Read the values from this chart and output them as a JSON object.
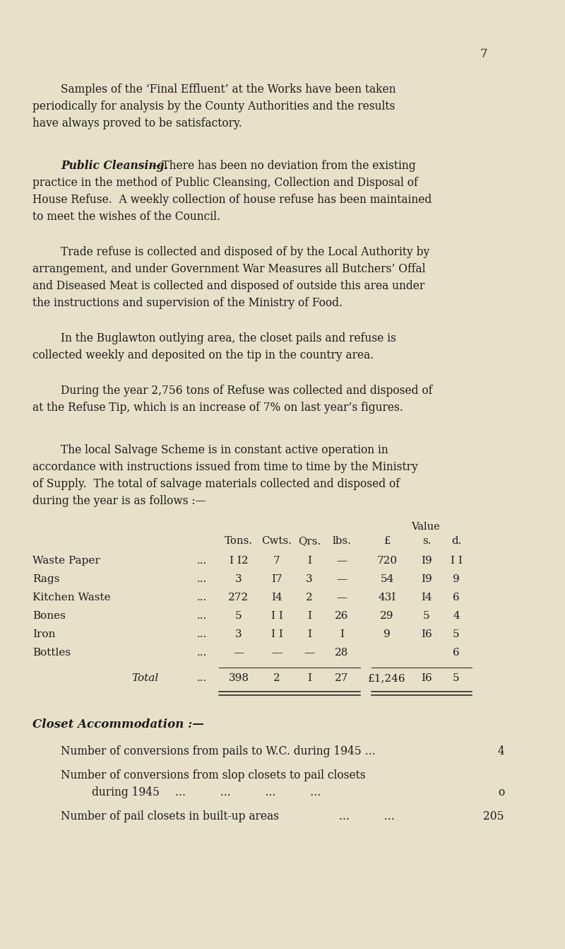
{
  "bg_color": "#e8e0c8",
  "text_color": "#1c1c1c",
  "page_number": "7",
  "para1": "Samples of the ‘Final Effluent’ at the Works have been taken periodically for analysis by the County Authorities and the results have always proved to be satisfactory.",
  "para2_bold": "Public Cleansing.",
  "para2_rest": "—There has been no deviation from the existing practice in the method of Public Cleansing, Collection and Disposal of House Refuse.  A weekly collection of house refuse has been maintained to meet the wishes of the Council.",
  "para3": "Trade refuse is collected and disposed of by the Local Authority by arrangement, and under Government War Measures all Butchers’ Offal and Diseased Meat is collected and disposed of outside this area under the instructions and supervision of the Ministry of Food.",
  "para4": "In the Buglawton outlying area, the closet pails and refuse is collected weekly and deposited on the tip in the country area.",
  "para5": "During the year 2,756 tons of Refuse was collected and disposed of at the Refuse Tip, which is an increase of 7% on last year’s figures.",
  "para6_line1": "The local Salvage Scheme is in constant active operation in",
  "para6_line2": "accordance with instructions issued from time to time by the Ministry",
  "para6_line3": "of Supply.  The total of salvage materials collected and disposed of",
  "para6_line4": "during the year is as follows :—",
  "table_value_label": "Value",
  "table_col_headers": [
    "Tons.",
    "Cwts.",
    "Qrs.",
    "lbs.",
    "£",
    "s.",
    "d."
  ],
  "table_rows": [
    [
      "Waste Paper",
      "...",
      "I I2",
      "7",
      "I",
      "—",
      "720",
      "I9",
      "I I"
    ],
    [
      "Rags",
      "...",
      "3",
      "I7",
      "3",
      "—",
      "54",
      "I9",
      "9"
    ],
    [
      "Kitchen Waste",
      "...",
      "272",
      "I4",
      "2",
      "—",
      "43I",
      "I4",
      "6"
    ],
    [
      "Bones",
      "...",
      "5",
      "I I",
      "I",
      "26",
      "29",
      "5",
      "4"
    ],
    [
      "Iron",
      "...",
      "3",
      "I I",
      "I",
      "I",
      "9",
      "I6",
      "5"
    ],
    [
      "Bottles",
      "...",
      "—",
      "—",
      "—",
      "28",
      "",
      "",
      "6"
    ]
  ],
  "table_total": [
    "Total",
    "...",
    "398",
    "2",
    "I",
    "27",
    "£1,246",
    "I6",
    "5"
  ],
  "closet_title": "Closet Accommodation :—",
  "closet_line1a": "Number of conversions from pails to W.C. during 1945 ...",
  "closet_line1b": "4",
  "closet_line2a": "Number of conversions from slop closets to pail closets",
  "closet_line2b_text": "during 1945",
  "closet_line2b_dots": "...          ...          ...          ...",
  "closet_line2b_val": "o",
  "closet_line3a": "Number of pail closets in built-up areas",
  "closet_line3b_dots": "...          ...",
  "closet_line3b_val": "205"
}
